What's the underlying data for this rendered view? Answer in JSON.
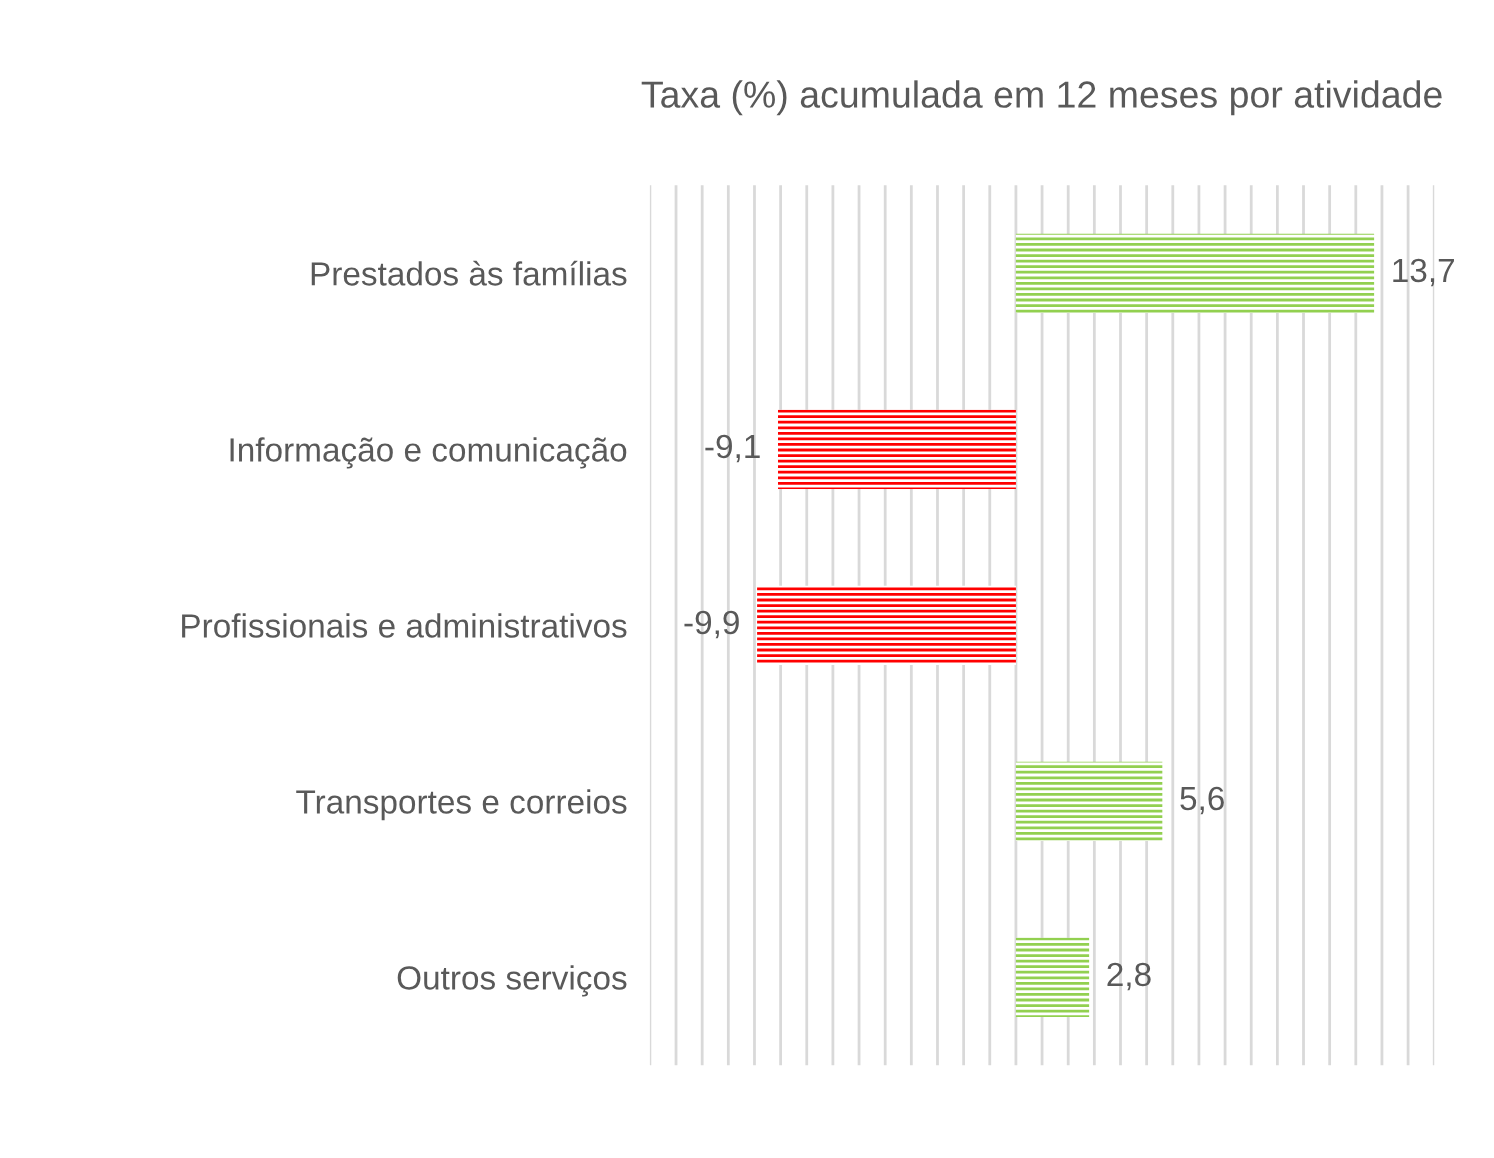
{
  "chart_data": {
    "type": "bar",
    "orientation": "horizontal",
    "title": "Taxa (%) acumulada em 12 meses por atividade",
    "categories": [
      "Prestados às famílias",
      "Informação e comunicação",
      "Profissionais e administrativos",
      "Transportes e correios",
      "Outros serviços"
    ],
    "values": [
      13.7,
      -9.1,
      -9.9,
      5.6,
      2.8
    ],
    "colors": [
      "#92d050",
      "#ff0000",
      "#ff0000",
      "#92d050",
      "#92d050"
    ],
    "value_labels": [
      "13,7",
      "-9,1",
      "-9,9",
      "5,6",
      "2,8"
    ],
    "xlim": [
      -14,
      16
    ],
    "xticks": [
      {
        "value": -14,
        "label": null
      },
      {
        "value": -13,
        "label": null
      },
      {
        "value": -12,
        "label": null
      },
      {
        "value": -11,
        "label": null
      },
      {
        "value": -10,
        "label": null
      },
      {
        "value": -9,
        "label": null
      },
      {
        "value": -8,
        "label": null
      },
      {
        "value": -7,
        "label": null
      },
      {
        "value": -6,
        "label": null
      },
      {
        "value": -5,
        "label": null
      },
      {
        "value": -4,
        "label": null
      },
      {
        "value": -3,
        "label": null
      },
      {
        "value": -2,
        "label": null
      },
      {
        "value": -1,
        "label": null
      },
      {
        "value": 0,
        "label": null
      },
      {
        "value": 1,
        "label": null
      },
      {
        "value": 2,
        "label": null
      },
      {
        "value": 3,
        "label": null
      },
      {
        "value": 4,
        "label": null
      },
      {
        "value": 5,
        "label": null
      },
      {
        "value": 6,
        "label": null
      },
      {
        "value": 7,
        "label": null
      },
      {
        "value": 8,
        "label": null
      },
      {
        "value": 9,
        "label": null
      },
      {
        "value": 10,
        "label": null
      },
      {
        "value": 11,
        "label": null
      },
      {
        "value": 12,
        "label": null
      },
      {
        "value": 13,
        "label": null
      },
      {
        "value": 14,
        "label": null
      },
      {
        "value": 15,
        "label": null
      },
      {
        "value": 16,
        "label": null
      }
    ],
    "grid": "x",
    "tick_labels": "y"
  }
}
